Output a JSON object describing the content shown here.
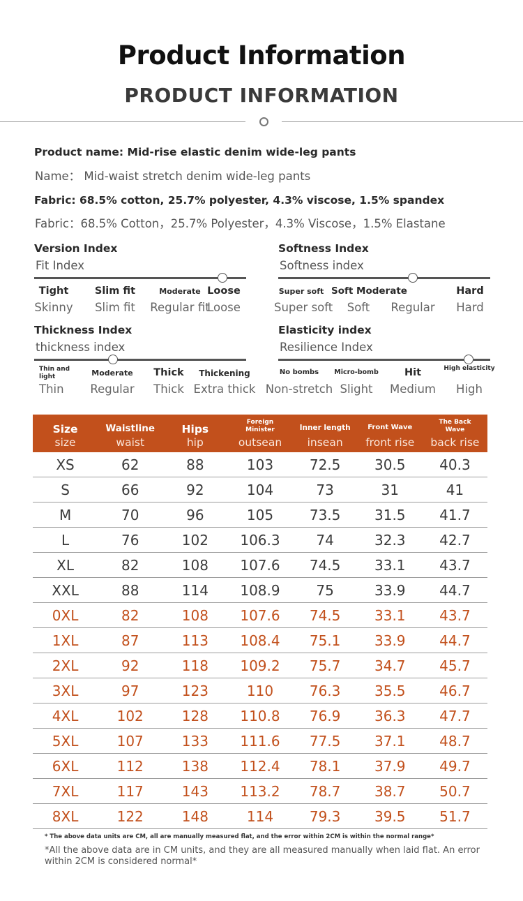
{
  "header": {
    "title": "Product Information",
    "subtitle": "PRODUCT INFORMATION"
  },
  "info": {
    "name_en": "Product name: Mid-rise elastic denim wide-leg pants",
    "name_tr": "Name：   Mid-waist stretch denim wide-leg pants",
    "fabric_en": "Fabric: 68.5% cotton, 25.7% polyester, 4.3% viscose, 1.5% spandex",
    "fabric_tr": "Fabric：68.5% Cotton，25.7% Polyester，4.3% Viscose，1.5% Elastane"
  },
  "indices": {
    "version": {
      "title": "Version Index",
      "subtitle": "Fit Index",
      "options": [
        {
          "en": "Tight",
          "cn": "Skinny"
        },
        {
          "en": "Slim fit",
          "cn": "Slim fit"
        },
        {
          "en": "Moderate",
          "cn": "Regular fit"
        },
        {
          "en": "Loose",
          "cn": "Loose"
        }
      ],
      "selected_index": 3
    },
    "softness": {
      "title": "Softness Index",
      "subtitle": "Softness index",
      "options": [
        {
          "en": "Super soft",
          "cn": "Super soft"
        },
        {
          "en": "Soft Moderate",
          "cn": "Soft"
        },
        {
          "en": "",
          "cn": "Regular"
        },
        {
          "en": "Hard",
          "cn": "Hard"
        }
      ],
      "selected_index": 2
    },
    "thickness": {
      "title": "Thickness Index",
      "subtitle": "thickness index",
      "options": [
        {
          "en": "Thin and light",
          "cn": "Thin"
        },
        {
          "en": "Moderate",
          "cn": "Regular"
        },
        {
          "en": "Thick",
          "cn": "Thick"
        },
        {
          "en": "Thickening",
          "cn": "Extra thick"
        }
      ],
      "selected_index": 1
    },
    "elasticity": {
      "title": "Elasticity index",
      "subtitle": "Resilience Index",
      "options": [
        {
          "en": "No bombs",
          "cn": "Non-stretch"
        },
        {
          "en": "Micro-bomb",
          "cn": "Slight"
        },
        {
          "en": "Hit",
          "cn": "Medium"
        },
        {
          "en": "High elasticity",
          "cn": "High"
        }
      ],
      "selected_index": 3
    }
  },
  "size_table": {
    "columns": [
      {
        "en": "Size",
        "cn": "size"
      },
      {
        "en": "Waistline",
        "cn": "waist"
      },
      {
        "en": "Hips",
        "cn": "hip"
      },
      {
        "en": "Foreign Minister",
        "cn": "outsean"
      },
      {
        "en": "Inner length",
        "cn": "insean"
      },
      {
        "en": "Front Wave",
        "cn": "front rise"
      },
      {
        "en": "The Back Wave",
        "cn": "back rise"
      }
    ],
    "rows": [
      [
        "XS",
        "62",
        "88",
        "103",
        "72.5",
        "30.5",
        "40.3"
      ],
      [
        "S",
        "66",
        "92",
        "104",
        "73",
        "31",
        "41"
      ],
      [
        "M",
        "70",
        "96",
        "105",
        "73.5",
        "31.5",
        "41.7"
      ],
      [
        "L",
        "76",
        "102",
        "106.3",
        "74",
        "32.3",
        "42.7"
      ],
      [
        "XL",
        "82",
        "108",
        "107.6",
        "74.5",
        "33.1",
        "43.7"
      ],
      [
        "XXL",
        "88",
        "114",
        "108.9",
        "75",
        "33.9",
        "44.7"
      ],
      [
        "0XL",
        "82",
        "108",
        "107.6",
        "74.5",
        "33.1",
        "43.7"
      ],
      [
        "1XL",
        "87",
        "113",
        "108.4",
        "75.1",
        "33.9",
        "44.7"
      ],
      [
        "2XL",
        "92",
        "118",
        "109.2",
        "75.7",
        "34.7",
        "45.7"
      ],
      [
        "3XL",
        "97",
        "123",
        "110",
        "76.3",
        "35.5",
        "46.7"
      ],
      [
        "4XL",
        "102",
        "128",
        "110.8",
        "76.9",
        "36.3",
        "47.7"
      ],
      [
        "5XL",
        "107",
        "133",
        "111.6",
        "77.5",
        "37.1",
        "48.7"
      ],
      [
        "6XL",
        "112",
        "138",
        "112.4",
        "78.1",
        "37.9",
        "49.7"
      ],
      [
        "7XL",
        "117",
        "143",
        "113.2",
        "78.7",
        "38.7",
        "50.7"
      ],
      [
        "8XL",
        "122",
        "148",
        "114",
        "79.3",
        "39.5",
        "51.7"
      ]
    ],
    "accent_from_row": 6,
    "header_color": "#c2501c",
    "accent_color": "#c2501c"
  },
  "notes": {
    "note1": "* The above data units are CM, all are manually measured flat, and the error within 2CM is within the normal range*",
    "note2": "*All the above data are in CM units, and they are all measured manually when laid flat. An error within 2CM is considered normal*"
  }
}
